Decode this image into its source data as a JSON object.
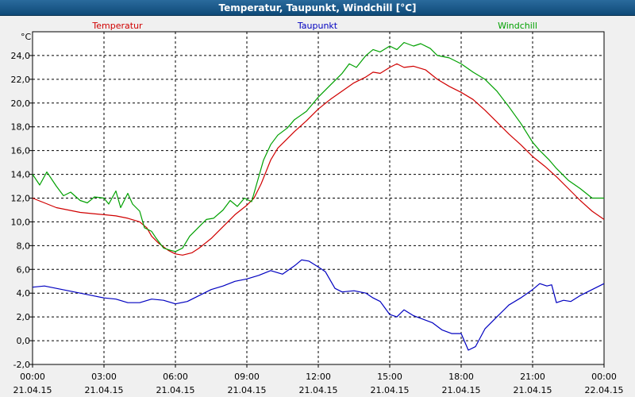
{
  "window": {
    "title": "Temperatur, Taupunkt, Windchill [°C]"
  },
  "chart_data": {
    "type": "line",
    "unit_label": "°C",
    "ylim": [
      -2.0,
      26.0
    ],
    "yticks": [
      "-2,0",
      "0,0",
      "2,0",
      "4,0",
      "6,0",
      "8,0",
      "10,0",
      "12,0",
      "14,0",
      "16,0",
      "18,0",
      "20,0",
      "22,0",
      "24,0"
    ],
    "xlim": [
      0,
      24
    ],
    "xticks": [
      {
        "time": "00:00",
        "date": "21.04.15"
      },
      {
        "time": "03:00",
        "date": "21.04.15"
      },
      {
        "time": "06:00",
        "date": "21.04.15"
      },
      {
        "time": "09:00",
        "date": "21.04.15"
      },
      {
        "time": "12:00",
        "date": "21.04.15"
      },
      {
        "time": "15:00",
        "date": "21.04.15"
      },
      {
        "time": "18:00",
        "date": "21.04.15"
      },
      {
        "time": "21:00",
        "date": "21.04.15"
      },
      {
        "time": "00:00",
        "date": "22.04.15"
      }
    ],
    "grid": true,
    "legend_position": "top",
    "series": [
      {
        "name": "Temperatur",
        "color": "#d00000",
        "points": [
          [
            0,
            12.0
          ],
          [
            0.5,
            11.6
          ],
          [
            1,
            11.2
          ],
          [
            1.5,
            11.0
          ],
          [
            2,
            10.8
          ],
          [
            2.5,
            10.7
          ],
          [
            3,
            10.6
          ],
          [
            3.5,
            10.5
          ],
          [
            4,
            10.3
          ],
          [
            4.5,
            10.0
          ],
          [
            4.8,
            9.5
          ],
          [
            5,
            8.8
          ],
          [
            5.3,
            8.2
          ],
          [
            5.7,
            7.6
          ],
          [
            6,
            7.3
          ],
          [
            6.3,
            7.2
          ],
          [
            6.7,
            7.4
          ],
          [
            7,
            7.8
          ],
          [
            7.5,
            8.6
          ],
          [
            8,
            9.6
          ],
          [
            8.5,
            10.6
          ],
          [
            9,
            11.4
          ],
          [
            9.3,
            12.0
          ],
          [
            9.6,
            13.2
          ],
          [
            9.8,
            14.2
          ],
          [
            10,
            15.2
          ],
          [
            10.3,
            16.2
          ],
          [
            10.7,
            17.0
          ],
          [
            11,
            17.6
          ],
          [
            11.5,
            18.5
          ],
          [
            12,
            19.5
          ],
          [
            12.5,
            20.3
          ],
          [
            13,
            21.0
          ],
          [
            13.5,
            21.7
          ],
          [
            14,
            22.2
          ],
          [
            14.3,
            22.6
          ],
          [
            14.6,
            22.5
          ],
          [
            15,
            23.0
          ],
          [
            15.3,
            23.3
          ],
          [
            15.6,
            23.0
          ],
          [
            16,
            23.1
          ],
          [
            16.5,
            22.8
          ],
          [
            17,
            22.0
          ],
          [
            17.5,
            21.4
          ],
          [
            18,
            20.9
          ],
          [
            18.5,
            20.3
          ],
          [
            19,
            19.4
          ],
          [
            19.5,
            18.4
          ],
          [
            20,
            17.4
          ],
          [
            20.5,
            16.5
          ],
          [
            21,
            15.5
          ],
          [
            21.5,
            14.7
          ],
          [
            22,
            13.8
          ],
          [
            22.5,
            12.8
          ],
          [
            23,
            11.8
          ],
          [
            23.5,
            10.9
          ],
          [
            24,
            10.2
          ]
        ]
      },
      {
        "name": "Taupunkt",
        "color": "#0000c0",
        "points": [
          [
            0,
            4.5
          ],
          [
            0.5,
            4.6
          ],
          [
            1,
            4.4
          ],
          [
            1.5,
            4.2
          ],
          [
            2,
            4.0
          ],
          [
            2.5,
            3.8
          ],
          [
            3,
            3.6
          ],
          [
            3.5,
            3.5
          ],
          [
            4,
            3.2
          ],
          [
            4.5,
            3.2
          ],
          [
            5,
            3.5
          ],
          [
            5.5,
            3.4
          ],
          [
            6,
            3.1
          ],
          [
            6.5,
            3.3
          ],
          [
            7,
            3.8
          ],
          [
            7.5,
            4.3
          ],
          [
            8,
            4.6
          ],
          [
            8.5,
            5.0
          ],
          [
            9,
            5.2
          ],
          [
            9.5,
            5.5
          ],
          [
            10,
            5.9
          ],
          [
            10.5,
            5.6
          ],
          [
            11,
            6.3
          ],
          [
            11.3,
            6.8
          ],
          [
            11.6,
            6.7
          ],
          [
            12,
            6.2
          ],
          [
            12.3,
            5.8
          ],
          [
            12.7,
            4.4
          ],
          [
            13,
            4.1
          ],
          [
            13.5,
            4.2
          ],
          [
            14,
            4.0
          ],
          [
            14.3,
            3.6
          ],
          [
            14.6,
            3.3
          ],
          [
            15,
            2.2
          ],
          [
            15.3,
            2.0
          ],
          [
            15.6,
            2.6
          ],
          [
            16,
            2.1
          ],
          [
            16.4,
            1.8
          ],
          [
            16.8,
            1.5
          ],
          [
            17.2,
            0.9
          ],
          [
            17.6,
            0.6
          ],
          [
            18,
            0.6
          ],
          [
            18.3,
            -0.8
          ],
          [
            18.6,
            -0.5
          ],
          [
            19,
            1.0
          ],
          [
            19.5,
            2.0
          ],
          [
            20,
            3.0
          ],
          [
            20.5,
            3.6
          ],
          [
            21,
            4.3
          ],
          [
            21.3,
            4.8
          ],
          [
            21.6,
            4.6
          ],
          [
            21.8,
            4.7
          ],
          [
            22,
            3.2
          ],
          [
            22.3,
            3.4
          ],
          [
            22.6,
            3.3
          ],
          [
            23,
            3.8
          ],
          [
            23.5,
            4.3
          ],
          [
            24,
            4.8
          ]
        ]
      },
      {
        "name": "Windchill",
        "color": "#00a000",
        "points": [
          [
            0,
            14.0
          ],
          [
            0.3,
            13.1
          ],
          [
            0.6,
            14.2
          ],
          [
            1,
            13.0
          ],
          [
            1.3,
            12.2
          ],
          [
            1.6,
            12.5
          ],
          [
            2,
            11.8
          ],
          [
            2.3,
            11.6
          ],
          [
            2.6,
            12.1
          ],
          [
            3,
            12.0
          ],
          [
            3.2,
            11.5
          ],
          [
            3.5,
            12.6
          ],
          [
            3.7,
            11.2
          ],
          [
            4,
            12.4
          ],
          [
            4.2,
            11.5
          ],
          [
            4.5,
            10.9
          ],
          [
            4.7,
            9.5
          ],
          [
            5,
            9.2
          ],
          [
            5.2,
            8.6
          ],
          [
            5.5,
            7.8
          ],
          [
            5.8,
            7.6
          ],
          [
            6,
            7.5
          ],
          [
            6.3,
            7.8
          ],
          [
            6.6,
            8.8
          ],
          [
            7,
            9.6
          ],
          [
            7.3,
            10.2
          ],
          [
            7.6,
            10.3
          ],
          [
            8,
            11.0
          ],
          [
            8.3,
            11.8
          ],
          [
            8.6,
            11.3
          ],
          [
            8.9,
            12.0
          ],
          [
            9.2,
            11.7
          ],
          [
            9.4,
            13.1
          ],
          [
            9.7,
            15.2
          ],
          [
            10,
            16.5
          ],
          [
            10.3,
            17.3
          ],
          [
            10.7,
            17.9
          ],
          [
            11,
            18.6
          ],
          [
            11.5,
            19.3
          ],
          [
            12,
            20.5
          ],
          [
            12.5,
            21.5
          ],
          [
            13,
            22.5
          ],
          [
            13.3,
            23.3
          ],
          [
            13.6,
            23.0
          ],
          [
            14,
            24.0
          ],
          [
            14.3,
            24.5
          ],
          [
            14.6,
            24.3
          ],
          [
            15,
            24.8
          ],
          [
            15.3,
            24.5
          ],
          [
            15.6,
            25.1
          ],
          [
            16,
            24.8
          ],
          [
            16.3,
            25.0
          ],
          [
            16.7,
            24.6
          ],
          [
            17,
            24.0
          ],
          [
            17.5,
            23.8
          ],
          [
            18,
            23.3
          ],
          [
            18.5,
            22.6
          ],
          [
            19,
            22.0
          ],
          [
            19.5,
            21.0
          ],
          [
            20,
            19.7
          ],
          [
            20.5,
            18.3
          ],
          [
            21,
            16.7
          ],
          [
            21.3,
            16.0
          ],
          [
            21.7,
            15.2
          ],
          [
            22,
            14.5
          ],
          [
            22.5,
            13.5
          ],
          [
            23,
            12.8
          ],
          [
            23.5,
            12.0
          ],
          [
            24,
            12.0
          ]
        ]
      }
    ]
  }
}
